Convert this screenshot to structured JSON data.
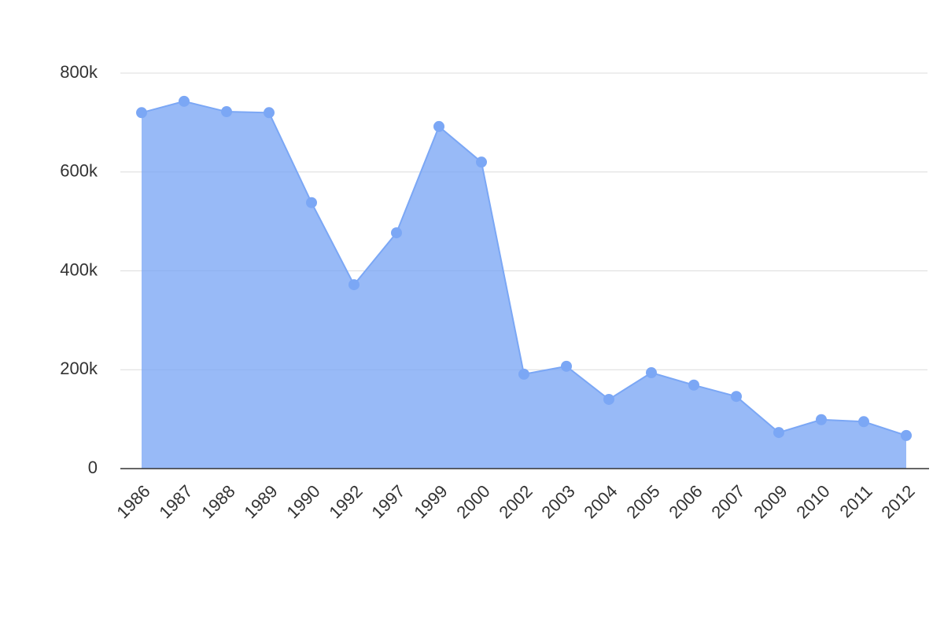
{
  "chart_data": {
    "type": "area",
    "categories": [
      "1986",
      "1987",
      "1988",
      "1989",
      "1990",
      "1992",
      "1997",
      "1999",
      "2000",
      "2002",
      "2003",
      "2004",
      "2005",
      "2006",
      "2007",
      "2009",
      "2010",
      "2011",
      "2012"
    ],
    "values": [
      720000,
      743000,
      722000,
      720000,
      538000,
      372000,
      477000,
      692000,
      620000,
      191000,
      207000,
      140000,
      194000,
      169000,
      146000,
      73000,
      99000,
      95000,
      67000
    ],
    "color": "#7ba7f5",
    "ylim": [
      0,
      800000
    ],
    "yticks": [
      0,
      {
        "value": 200000,
        "label": "200k"
      },
      {
        "value": 400000,
        "label": "400k"
      },
      {
        "value": 600000,
        "label": "600k"
      },
      {
        "value": 800000,
        "label": "800k"
      }
    ],
    "grid": true
  }
}
